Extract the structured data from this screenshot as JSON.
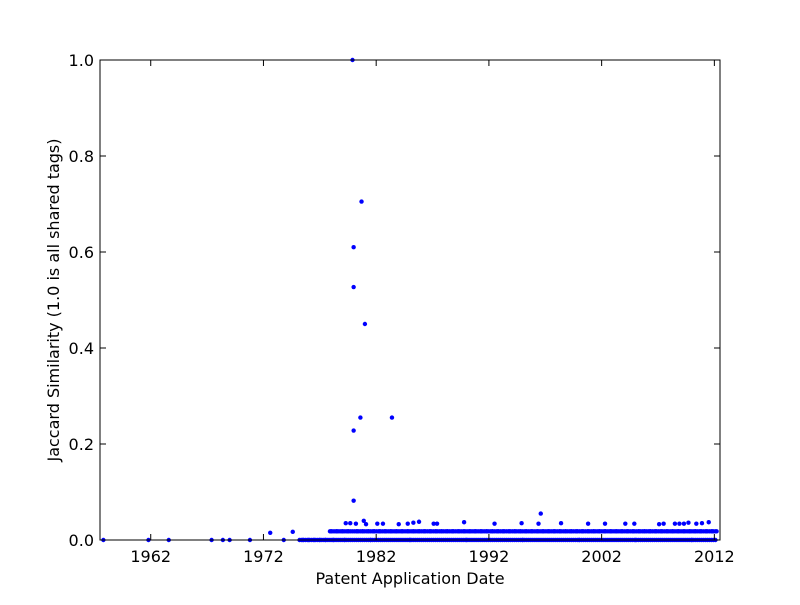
{
  "chart_data": {
    "type": "scatter",
    "title": "",
    "xlabel": "Patent Application Date",
    "ylabel": "Jaccard Similarity (1.0 is all shared tags)",
    "xlim": [
      1957.5,
      2012.5
    ],
    "ylim": [
      0.0,
      1.0
    ],
    "x_ticks": [
      1962,
      1972,
      1982,
      1992,
      2002,
      2012
    ],
    "x_tick_labels": [
      "1962",
      "1972",
      "1982",
      "1992",
      "2002",
      "2012"
    ],
    "y_ticks": [
      0.0,
      0.2,
      0.4,
      0.6,
      0.8,
      1.0
    ],
    "y_tick_labels": [
      "0.0",
      "0.2",
      "0.4",
      "0.6",
      "0.8",
      "1.0"
    ],
    "grid": false,
    "legend": "none",
    "marker_color": "#0000ff",
    "series": [
      {
        "x": [
          1957.8,
          1961.8,
          1963.6,
          1967.4,
          1968.4,
          1969.0,
          1970.8,
          1972.6,
          1973.8,
          1974.6,
          1979.9,
          1980.7,
          1980.0,
          1980.0,
          1981.0,
          1980.6,
          1983.4,
          1980.0,
          1980.0,
          1979.3,
          1979.7,
          1980.2,
          1980.9,
          1981.1,
          1982.1,
          1982.6,
          1984.0,
          1984.8,
          1985.3,
          1985.8,
          1987.1,
          1987.4,
          1989.8,
          1992.5,
          1994.9,
          1996.4,
          1996.6,
          1998.4,
          2000.8,
          2002.3,
          2004.1,
          2004.9,
          2007.1,
          2007.5,
          2008.5,
          2008.9,
          2009.3,
          2009.7,
          2010.4,
          2010.9,
          2011.5,
          1978.0,
          1978.5,
          1979.0,
          1979.5,
          1980.3,
          1980.8,
          1981.3,
          1981.8,
          1982.3,
          1982.8,
          1983.3,
          1983.8,
          1984.3,
          1984.8,
          1985.3,
          1985.8,
          1986.3,
          1986.8,
          1987.3,
          1987.8,
          1988.3,
          1988.8,
          1989.3,
          1989.8,
          1990.3,
          1990.8,
          1991.3,
          1991.8,
          1992.3,
          1992.8,
          1993.3,
          1993.8,
          1994.3,
          1994.8,
          1995.3,
          1995.8,
          1996.3,
          1996.8,
          1997.3,
          1997.8,
          1998.3,
          1998.8,
          1999.3,
          1999.8,
          2000.3,
          2000.8,
          2001.3,
          2001.8,
          2002.3,
          2002.8,
          2003.3,
          2003.8,
          2004.3,
          2004.8,
          2005.3,
          2005.8,
          2006.3,
          2006.8,
          2007.3,
          2007.8,
          2008.3,
          2008.8,
          2009.3,
          2009.8,
          2010.3,
          2010.8,
          2011.3,
          2011.8,
          2012.2,
          1975.5,
          1976.0,
          1976.5,
          1977.0,
          1977.5,
          1978.2,
          1979.2,
          1981.5,
          1985.0,
          1990.0,
          1995.0,
          2000.0,
          2005.0,
          2010.0
        ],
        "y": [
          0.0,
          0.0,
          0.0,
          0.0,
          0.0,
          0.0,
          0.0,
          0.015,
          0.0,
          0.017,
          1.0,
          0.705,
          0.61,
          0.527,
          0.45,
          0.255,
          0.255,
          0.228,
          0.082,
          0.035,
          0.035,
          0.034,
          0.04,
          0.033,
          0.034,
          0.034,
          0.033,
          0.034,
          0.036,
          0.038,
          0.034,
          0.034,
          0.037,
          0.034,
          0.035,
          0.034,
          0.055,
          0.035,
          0.034,
          0.034,
          0.034,
          0.034,
          0.033,
          0.034,
          0.034,
          0.034,
          0.034,
          0.036,
          0.034,
          0.035,
          0.037,
          0.018,
          0.018,
          0.018,
          0.018,
          0.018,
          0.018,
          0.018,
          0.018,
          0.018,
          0.018,
          0.018,
          0.018,
          0.018,
          0.018,
          0.018,
          0.018,
          0.018,
          0.018,
          0.018,
          0.018,
          0.018,
          0.018,
          0.018,
          0.018,
          0.018,
          0.018,
          0.018,
          0.018,
          0.018,
          0.018,
          0.018,
          0.018,
          0.018,
          0.018,
          0.018,
          0.018,
          0.018,
          0.018,
          0.018,
          0.018,
          0.018,
          0.018,
          0.018,
          0.018,
          0.018,
          0.018,
          0.018,
          0.018,
          0.018,
          0.018,
          0.018,
          0.018,
          0.018,
          0.018,
          0.018,
          0.018,
          0.018,
          0.018,
          0.018,
          0.018,
          0.018,
          0.018,
          0.018,
          0.018,
          0.018,
          0.018,
          0.018,
          0.018,
          0.018,
          0.0,
          0.0,
          0.0,
          0.0,
          0.0,
          0.0,
          0.0,
          0.0,
          0.0,
          0.0,
          0.0,
          0.0,
          0.0,
          0.0
        ]
      }
    ]
  }
}
